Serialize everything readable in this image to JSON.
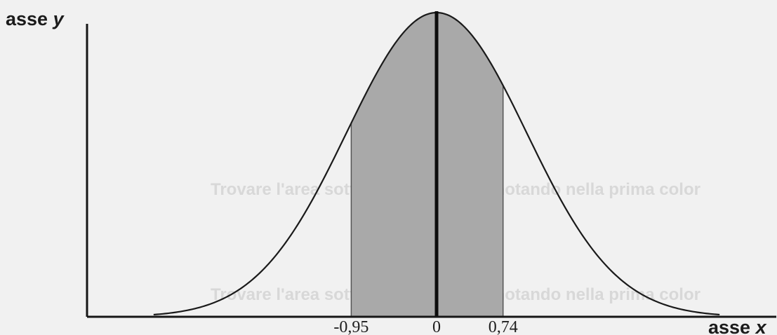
{
  "chart_data": {
    "type": "area",
    "title": "",
    "xlabel_prefix": "asse",
    "xlabel_var": "x",
    "ylabel_prefix": "asse",
    "ylabel_var": "y",
    "distribution": "standard normal",
    "mean": 0,
    "sd": 1,
    "xlim": [
      -3.15,
      3.15
    ],
    "shaded_interval": [
      -0.95,
      0.74
    ],
    "tick_labels": [
      {
        "x": -0.95,
        "label": "-0,95"
      },
      {
        "x": 0,
        "label": "0"
      },
      {
        "x": 0.74,
        "label": "0,74"
      }
    ],
    "colors": {
      "background": "#f1f1f1",
      "shaded": "#a9a9a9",
      "curve": "#1a1a1a",
      "axes": "#161616"
    }
  },
  "bleed_text": {
    "line1": "Trovare l'area sottesa alla curva, annotando nella prima color",
    "line2": "Trovare l'area sottesa alla curva, annotando nella prima color"
  }
}
